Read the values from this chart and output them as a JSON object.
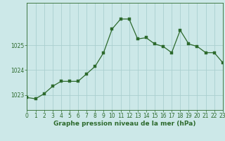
{
  "hours": [
    0,
    1,
    2,
    3,
    4,
    5,
    6,
    7,
    8,
    9,
    10,
    11,
    12,
    13,
    14,
    15,
    16,
    17,
    18,
    19,
    20,
    21,
    22,
    23
  ],
  "values": [
    1022.9,
    1022.85,
    1023.05,
    1023.35,
    1023.55,
    1023.55,
    1023.55,
    1023.85,
    1024.15,
    1024.7,
    1025.65,
    1026.05,
    1026.05,
    1025.25,
    1025.3,
    1025.05,
    1024.95,
    1024.7,
    1025.6,
    1025.05,
    1024.95,
    1024.7,
    1024.7,
    1024.3
  ],
  "line_color": "#2d6a2d",
  "marker_color": "#2d6a2d",
  "bg_color": "#cce8e8",
  "grid_color": "#aacfcf",
  "tick_label_color": "#2d6a2d",
  "xlabel": "Graphe pression niveau de la mer (hPa)",
  "xlabel_color": "#2d6a2d",
  "yticks": [
    1023,
    1024,
    1025
  ],
  "ylim": [
    1022.4,
    1026.7
  ],
  "xlim": [
    0,
    23
  ],
  "axis_fontsize": 5.5,
  "xlabel_fontsize": 6.5
}
